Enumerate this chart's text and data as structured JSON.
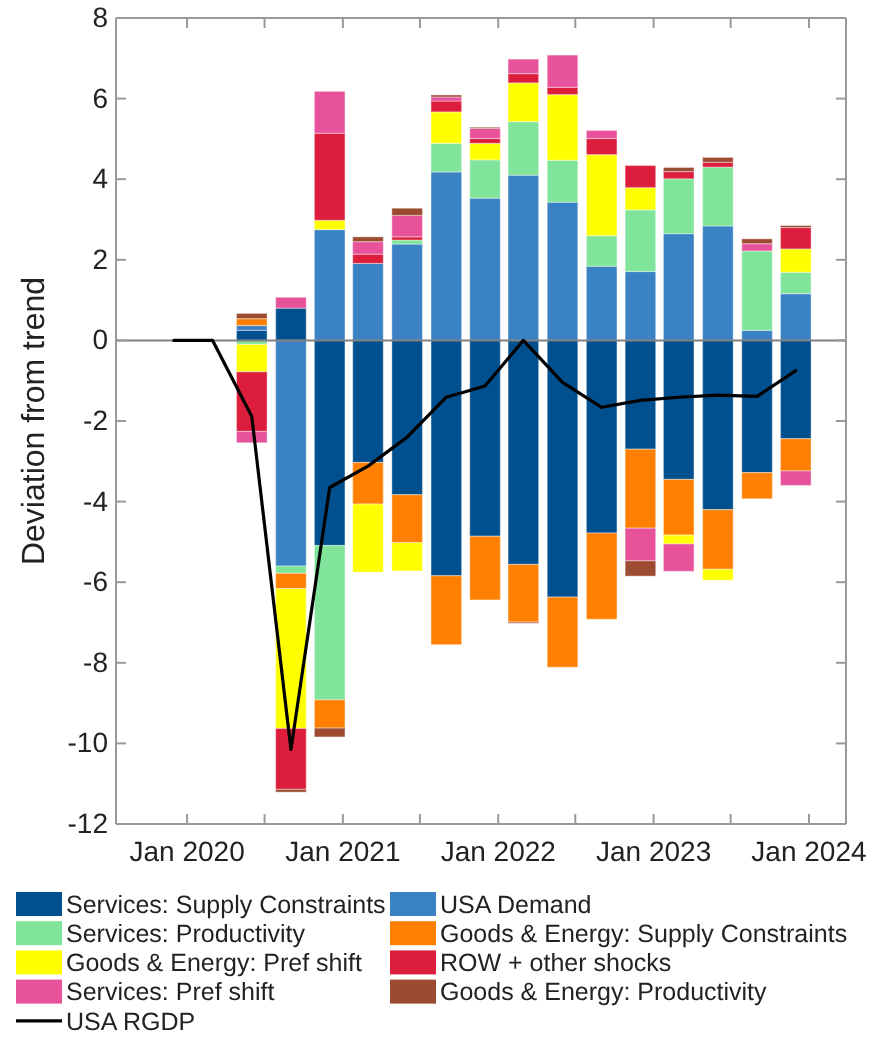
{
  "chart_data": {
    "type": "bar",
    "stacked": true,
    "ylabel": "Deviation from trend",
    "legend": "bottom",
    "x": [
      "2019-12",
      "2020-03",
      "2020-06",
      "2020-09",
      "2020-12",
      "2021-03",
      "2021-06",
      "2021-09",
      "2021-12",
      "2022-03",
      "2022-06",
      "2022-09",
      "2022-12",
      "2023-03",
      "2023-06",
      "2023-09",
      "2023-12"
    ],
    "xlim": [
      "2019-07-18",
      "2024-03-28"
    ],
    "xticks": [
      {
        "value": "2020-01-01",
        "label": "Jan 2020"
      },
      {
        "value": "2020-07-01",
        "label": null
      },
      {
        "value": "2021-01-01",
        "label": "Jan 2021"
      },
      {
        "value": "2021-07-01",
        "label": null
      },
      {
        "value": "2022-01-01",
        "label": "Jan 2022"
      },
      {
        "value": "2022-07-01",
        "label": null
      },
      {
        "value": "2023-01-01",
        "label": "Jan 2023"
      },
      {
        "value": "2023-07-01",
        "label": null
      },
      {
        "value": "2024-01-01",
        "label": "Jan 2024"
      }
    ],
    "ylim": [
      -12,
      8
    ],
    "yticks": [
      -12,
      -10,
      -8,
      -6,
      -4,
      -2,
      0,
      2,
      4,
      6,
      8
    ],
    "ref_lines": [
      {
        "axis": "y",
        "value": 0,
        "color": "#808080"
      }
    ],
    "series": [
      {
        "name": "Services: Supply Constraints",
        "color": "#00508f",
        "values": [
          0,
          0,
          0.25,
          0.8,
          -5.09,
          -3.03,
          -3.83,
          -5.84,
          -4.86,
          -5.56,
          -6.37,
          -4.78,
          -2.7,
          -3.45,
          -4.2,
          -3.28,
          -2.44
        ]
      },
      {
        "name": "USA Demand",
        "color": "#3a82c4",
        "values": [
          0,
          0,
          0.12,
          -5.6,
          2.75,
          1.91,
          2.39,
          4.18,
          3.53,
          4.1,
          3.43,
          1.84,
          1.71,
          2.65,
          2.84,
          0.25,
          1.16
        ]
      },
      {
        "name": "Services: Productivity",
        "color": "#80e59a",
        "values": [
          0,
          0,
          -0.1,
          -0.18,
          -3.83,
          0,
          0.1,
          0.71,
          0.95,
          1.33,
          1.04,
          0.76,
          1.53,
          1.36,
          1.46,
          1.97,
          0.53
        ]
      },
      {
        "name": "Goods & Energy: Supply Constraints",
        "color": "#ff8000",
        "values": [
          0,
          0,
          0.17,
          -0.38,
          -0.7,
          -1.03,
          -1.19,
          -1.71,
          -1.58,
          -1.43,
          -1.74,
          -2.14,
          -1.96,
          -1.38,
          -1.48,
          -0.65,
          -0.8
        ]
      },
      {
        "name": "Goods & Energy: Pref shift",
        "color": "#ffff00",
        "values": [
          0,
          0,
          -0.68,
          -3.47,
          0.23,
          -1.69,
          -0.7,
          0.78,
          0.41,
          0.96,
          1.63,
          2.01,
          0.55,
          -0.22,
          -0.27,
          0,
          0.58
        ]
      },
      {
        "name": "ROW + other shocks",
        "color": "#dc1e3c",
        "values": [
          null,
          null,
          -1.48,
          -1.51,
          2.16,
          0.23,
          0.08,
          0.27,
          0.12,
          0.23,
          0.18,
          0.4,
          0.55,
          0.18,
          0.12,
          0,
          0.53
        ]
      },
      {
        "name": "Services: Pref shift",
        "color": "#e8529a",
        "values": [
          0,
          0,
          -0.28,
          0.27,
          1.04,
          0.31,
          0.53,
          0.1,
          0.25,
          0.36,
          0.8,
          0.2,
          -0.81,
          -0.68,
          0,
          0.18,
          -0.36
        ]
      },
      {
        "name": "Goods & Energy: Productivity",
        "color": "#9c4a30",
        "values": [
          0,
          0,
          0.13,
          -0.07,
          -0.22,
          0.12,
          0.18,
          0.05,
          0.03,
          -0.03,
          0,
          0,
          -0.38,
          0.1,
          0.12,
          0.12,
          0.05
        ]
      },
      {
        "name": "USA RGDP",
        "type": "line",
        "color": "#000000",
        "values": [
          0,
          0,
          -1.89,
          -10.15,
          -3.65,
          -3.12,
          -2.4,
          -1.41,
          -1.13,
          0,
          -1.04,
          -1.66,
          -1.49,
          -1.41,
          -1.36,
          -1.39,
          -0.75
        ]
      }
    ]
  }
}
